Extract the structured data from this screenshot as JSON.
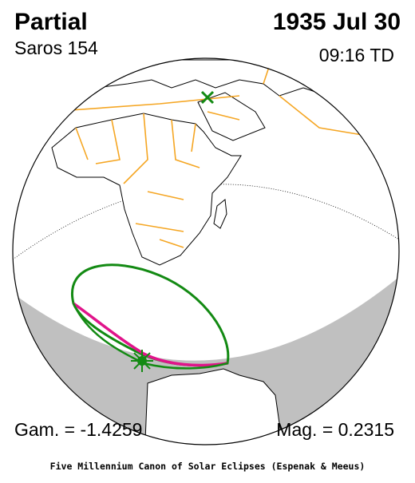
{
  "header": {
    "eclipse_type": "Partial",
    "saros": "Saros 154",
    "date": "1935 Jul 30",
    "time": "09:16 TD"
  },
  "footer": {
    "gamma": "Gam. = -1.4259",
    "magnitude": "Mag. = 0.2315",
    "credit": "Five Millennium Canon of Solar Eclipses (Espenak & Meeus)"
  }
}
